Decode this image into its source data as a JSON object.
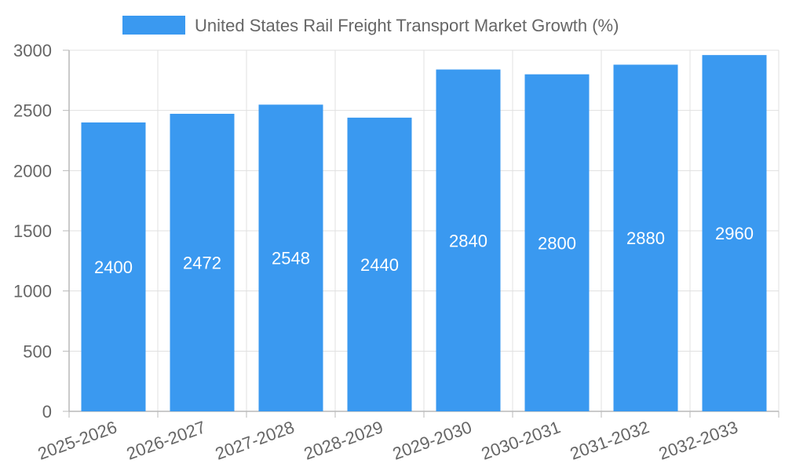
{
  "chart_data": {
    "type": "bar",
    "categories": [
      "2025-2026",
      "2026-2027",
      "2027-2028",
      "2028-2029",
      "2029-2030",
      "2030-2031",
      "2031-2032",
      "2032-2033"
    ],
    "series": [
      {
        "name": "United States Rail Freight Transport Market Growth (%)",
        "values": [
          2400,
          2472,
          2548,
          2440,
          2840,
          2800,
          2880,
          2960
        ],
        "color": "#3a99f0"
      }
    ],
    "y_ticks": [
      "0",
      "500",
      "1000",
      "1500",
      "2000",
      "2500",
      "3000"
    ],
    "ylim": [
      0,
      3000
    ],
    "grid": true,
    "legend": "top-center",
    "data_labels": true,
    "x_tick_rotation": "angled"
  }
}
